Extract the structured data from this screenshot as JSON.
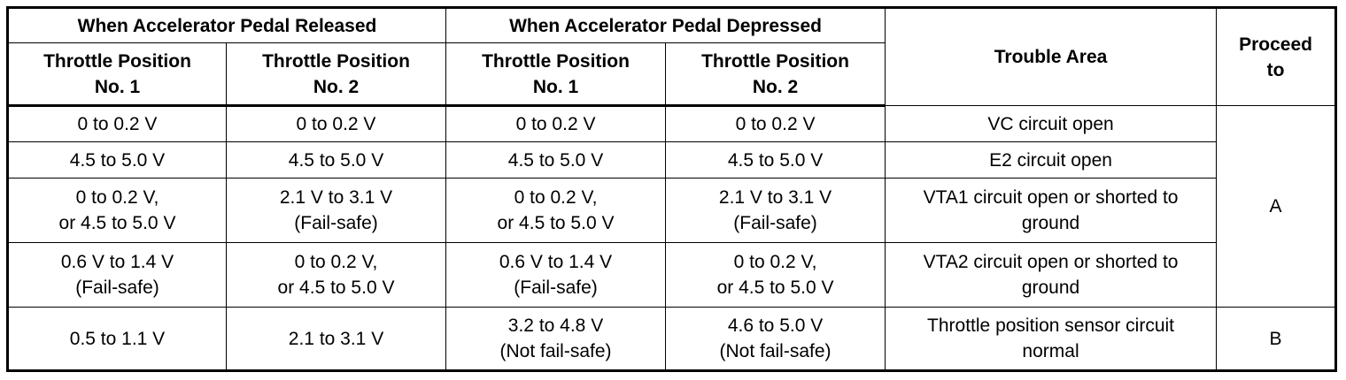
{
  "table": {
    "group_headers": {
      "released": "When Accelerator Pedal Released",
      "depressed": "When Accelerator Pedal Depressed",
      "trouble_area": "Trouble Area",
      "proceed_to": [
        "Proceed",
        "to"
      ]
    },
    "sub_headers": {
      "released_tp1": [
        "Throttle Position",
        "No. 1"
      ],
      "released_tp2": [
        "Throttle Position",
        "No. 2"
      ],
      "depressed_tp1": [
        "Throttle Position",
        "No. 1"
      ],
      "depressed_tp2": [
        "Throttle Position",
        "No. 2"
      ]
    },
    "rows": [
      {
        "released_tp1": [
          "0 to 0.2 V"
        ],
        "released_tp2": [
          "0 to 0.2 V"
        ],
        "depressed_tp1": [
          "0 to 0.2 V"
        ],
        "depressed_tp2": [
          "0 to 0.2 V"
        ],
        "trouble_area": [
          "VC circuit open"
        ]
      },
      {
        "released_tp1": [
          "4.5 to 5.0 V"
        ],
        "released_tp2": [
          "4.5 to 5.0 V"
        ],
        "depressed_tp1": [
          "4.5 to 5.0 V"
        ],
        "depressed_tp2": [
          "4.5 to 5.0 V"
        ],
        "trouble_area": [
          "E2 circuit open"
        ]
      },
      {
        "released_tp1": [
          "0 to 0.2 V,",
          "or 4.5 to 5.0 V"
        ],
        "released_tp2": [
          "2.1 V to 3.1 V",
          "(Fail-safe)"
        ],
        "depressed_tp1": [
          "0 to 0.2 V,",
          "or 4.5 to 5.0 V"
        ],
        "depressed_tp2": [
          "2.1 V to 3.1 V",
          "(Fail-safe)"
        ],
        "trouble_area": [
          "VTA1 circuit open or shorted to",
          "ground"
        ]
      },
      {
        "released_tp1": [
          "0.6 V to 1.4 V",
          "(Fail-safe)"
        ],
        "released_tp2": [
          "0 to 0.2 V,",
          "or 4.5 to 5.0 V"
        ],
        "depressed_tp1": [
          "0.6 V to 1.4 V",
          "(Fail-safe)"
        ],
        "depressed_tp2": [
          "0 to 0.2 V,",
          "or 4.5 to 5.0 V"
        ],
        "trouble_area": [
          "VTA2 circuit open or shorted to",
          "ground"
        ]
      },
      {
        "released_tp1": [
          "0.5 to 1.1 V"
        ],
        "released_tp2": [
          "2.1 to 3.1 V"
        ],
        "depressed_tp1": [
          "3.2 to 4.8 V",
          "(Not fail-safe)"
        ],
        "depressed_tp2": [
          "4.6 to 5.0 V",
          "(Not fail-safe)"
        ],
        "trouble_area": [
          "Throttle position sensor circuit",
          "normal"
        ]
      }
    ],
    "proceed": {
      "group_a": "A",
      "group_b": "B"
    }
  }
}
